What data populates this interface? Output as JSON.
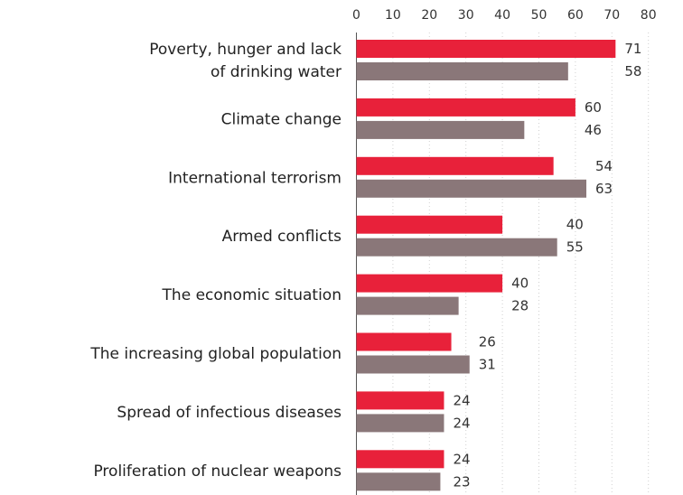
{
  "title_fragment": "(%)",
  "chart_data": {
    "type": "bar",
    "orientation": "horizontal",
    "categories": [
      [
        "Poverty, hunger and lack",
        "of drinking water"
      ],
      [
        "Climate change"
      ],
      [
        "International terrorism"
      ],
      [
        "Armed conflicts"
      ],
      [
        "The economic situation"
      ],
      [
        "The increasing global population"
      ],
      [
        "Spread of infectious diseases"
      ],
      [
        "Proliferation of nuclear weapons"
      ]
    ],
    "series": [
      {
        "color": "#e8213a",
        "values": [
          71,
          60,
          54,
          40,
          40,
          26,
          24,
          24
        ]
      },
      {
        "color": "#8a7779",
        "values": [
          58,
          46,
          63,
          55,
          28,
          31,
          24,
          23
        ]
      }
    ],
    "xlim": [
      0,
      80
    ],
    "xticks": [
      0,
      10,
      20,
      30,
      40,
      50,
      60,
      70,
      80
    ],
    "axis_position": "top",
    "grid": "vertical-dotted",
    "legend": "none"
  }
}
